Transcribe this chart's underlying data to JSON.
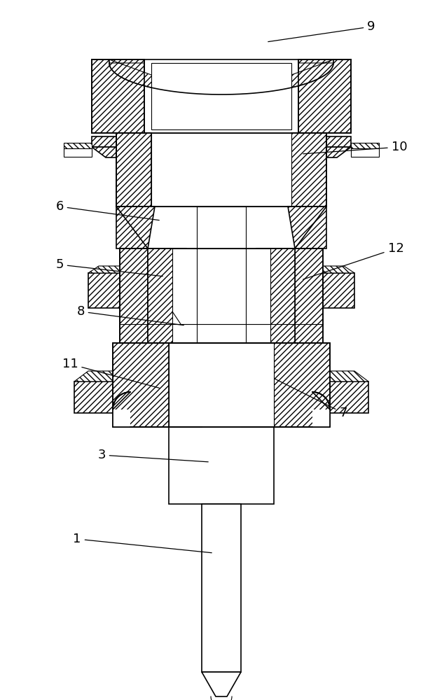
{
  "background_color": "#ffffff",
  "line_color": "#000000",
  "figsize": [
    6.31,
    10.0
  ],
  "dpi": 100,
  "label_fontsize": 13
}
